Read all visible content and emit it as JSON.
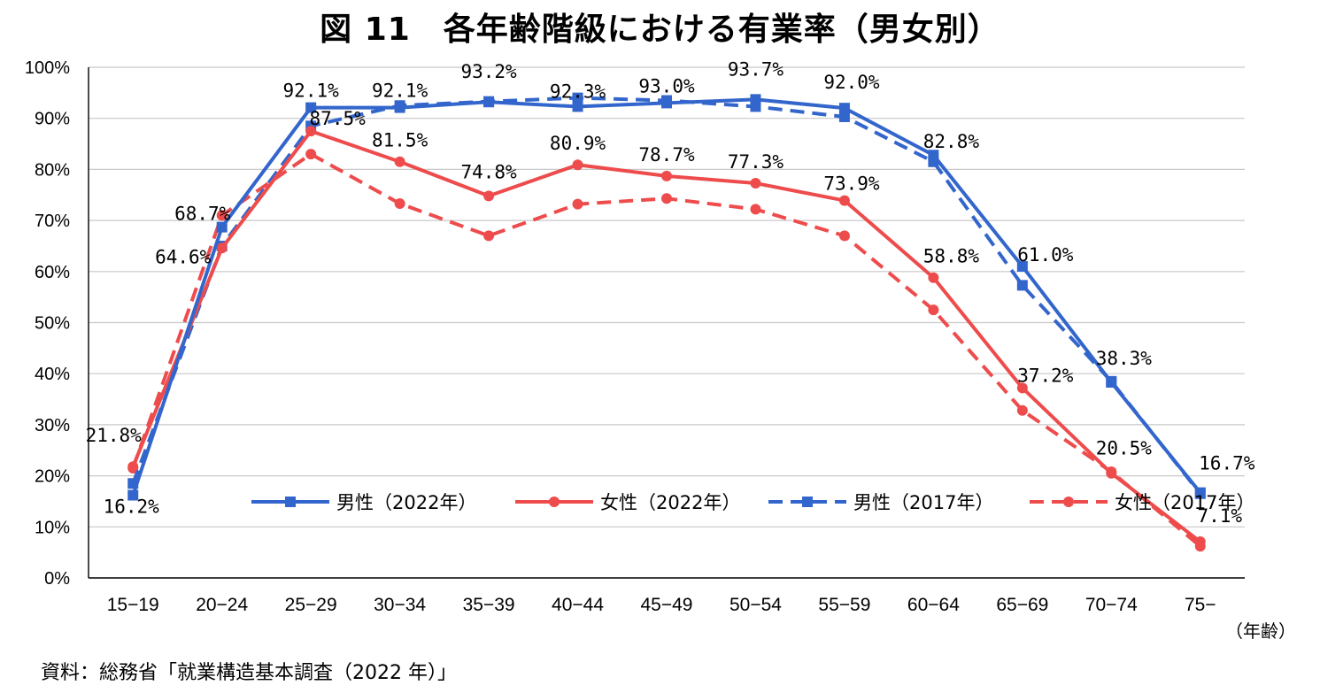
{
  "title": "図 11　各年齢階級における有業率（男女別）",
  "source": "資料：総務省「就業構造基本調査（2022 年）」",
  "chart_data": {
    "type": "line",
    "categories": [
      "15−19",
      "20−24",
      "25−29",
      "30−34",
      "35−39",
      "40−44",
      "45−49",
      "50−54",
      "55−59",
      "60−64",
      "65−69",
      "70−74",
      "75−"
    ],
    "x_unit_label": "（年齢）",
    "ylim": [
      0,
      100
    ],
    "y_ticks": [
      0,
      10,
      20,
      30,
      40,
      50,
      60,
      70,
      80,
      90,
      100
    ],
    "y_tick_labels": [
      "0%",
      "10%",
      "20%",
      "30%",
      "40%",
      "50%",
      "60%",
      "70%",
      "80%",
      "90%",
      "100%"
    ],
    "grid": true,
    "legend_position": "bottom-inside",
    "series": [
      {
        "name": "男性（2022年）",
        "color": "#3366cc",
        "dash": "solid",
        "marker": "square",
        "values": [
          16.2,
          68.7,
          92.1,
          92.1,
          93.2,
          92.3,
          93.0,
          93.7,
          92.0,
          82.8,
          61.0,
          38.3,
          16.7
        ],
        "labels": [
          "16.2%",
          "68.7%",
          "92.1%",
          "92.1%",
          "93.2%",
          "92.3%",
          "93.0%",
          "93.7%",
          "92.0%",
          "82.8%",
          "61.0%",
          "38.3%",
          "16.7%"
        ]
      },
      {
        "name": "女性（2022年）",
        "color": "#ee4c4c",
        "dash": "solid",
        "marker": "circle",
        "values": [
          21.8,
          64.6,
          87.5,
          81.5,
          74.8,
          80.9,
          78.7,
          77.3,
          73.9,
          58.8,
          37.2,
          20.5,
          7.1
        ],
        "labels": [
          "21.8%",
          "64.6%",
          "87.5%",
          "81.5%",
          "74.8%",
          "80.9%",
          "78.7%",
          "77.3%",
          "73.9%",
          "58.8%",
          "37.2%",
          "20.5%",
          "7.1%"
        ]
      },
      {
        "name": "男性（2017年）",
        "color": "#3366cc",
        "dash": "dashed",
        "marker": "square",
        "values": [
          18.5,
          65.0,
          88.5,
          92.5,
          93.3,
          94.0,
          93.5,
          92.3,
          90.3,
          81.5,
          57.3,
          38.5,
          16.5
        ]
      },
      {
        "name": "女性（2017年）",
        "color": "#ee4c4c",
        "dash": "dashed",
        "marker": "circle",
        "values": [
          21.5,
          71.0,
          83.0,
          73.3,
          67.0,
          73.2,
          74.3,
          72.2,
          67.0,
          52.5,
          32.8,
          20.8,
          6.2
        ]
      }
    ]
  }
}
